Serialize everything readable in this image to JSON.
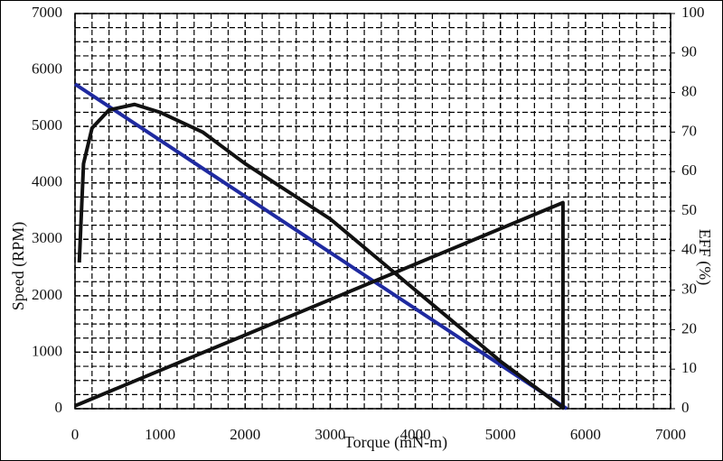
{
  "chart_data": {
    "type": "line",
    "xlabel": "Torque (mN-m)",
    "ylabel": "Speed (RPM)",
    "y2label": "EFF (%)",
    "xlim": [
      0,
      7000
    ],
    "xticks": [
      0,
      1000,
      2000,
      3000,
      4000,
      5000,
      6000,
      7000
    ],
    "ylim": [
      0,
      7000
    ],
    "yticks": [
      0,
      1000,
      2000,
      3000,
      4000,
      5000,
      6000,
      7000
    ],
    "y2lim": [
      0,
      100
    ],
    "y2ticks": [
      0,
      10,
      20,
      30,
      40,
      50,
      60,
      70,
      80,
      90,
      100
    ],
    "xminorticks": [
      200,
      400,
      600,
      800,
      1200,
      1400,
      1600,
      1800,
      2200,
      2400,
      2600,
      2800,
      3200,
      3400,
      3600,
      3800,
      4200,
      4400,
      4600,
      4800,
      5200,
      5400,
      5600,
      5800,
      6200,
      6400,
      6600,
      6800
    ],
    "yminorticks": [
      250,
      500,
      750,
      1250,
      1500,
      1750,
      2250,
      2500,
      2750,
      3250,
      3500,
      3750,
      4250,
      4500,
      4750,
      5250,
      5500,
      5750,
      6250,
      6500,
      6750
    ],
    "grid": true,
    "series": [
      {
        "color": "#1f2aa0",
        "x": [
          0,
          5780
        ],
        "values": [
          5750,
          0
        ]
      },
      {
        "color": "#111111",
        "x": [
          0,
          5735,
          5735
        ],
        "values": [
          50,
          3650,
          0
        ]
      },
      {
        "color": "#111111",
        "axis": "y2",
        "x": [
          50,
          100,
          200,
          400,
          700,
          1000,
          1500,
          2000,
          3000,
          4000,
          5000,
          5750
        ],
        "values": [
          37,
          62,
          71,
          75.6,
          77,
          75,
          70,
          62,
          48,
          30,
          12,
          0
        ]
      }
    ]
  }
}
